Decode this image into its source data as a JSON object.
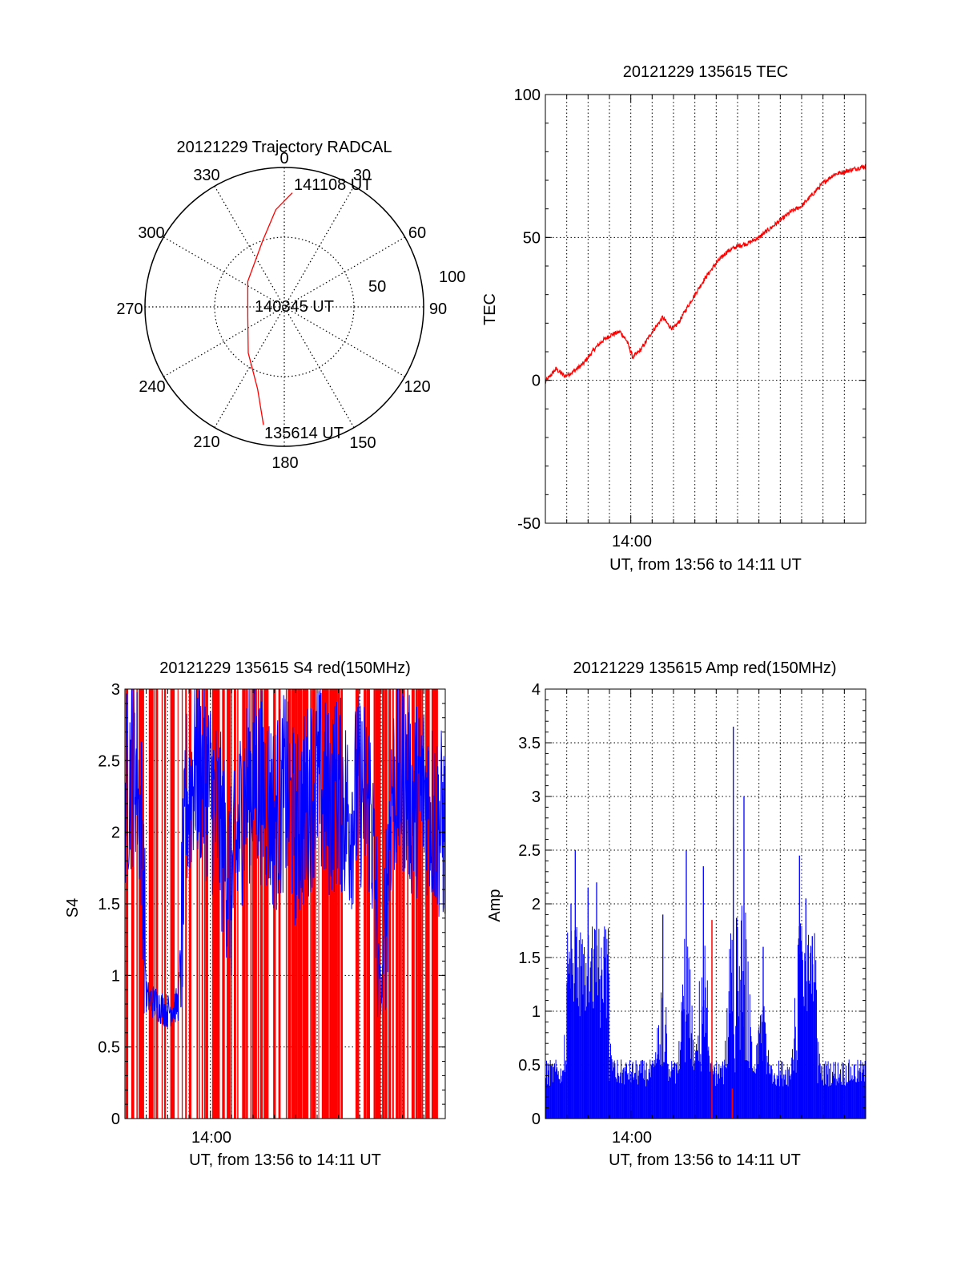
{
  "colors": {
    "red": "#ff0000",
    "blue": "#0000ff",
    "axis": "#000000"
  },
  "chart_data": [
    {
      "type": "polar",
      "title": "20121229 Trajectory RADCAL",
      "azimuth_labels": [
        "0",
        "30",
        "60",
        "90",
        "120",
        "150",
        "180",
        "210",
        "240",
        "270",
        "300",
        "330"
      ],
      "radial_labels": [
        "50",
        "100"
      ],
      "rlim": [
        0,
        100
      ],
      "trajectory": {
        "color": "red",
        "points": [
          {
            "az": 4,
            "r": 82
          },
          {
            "az": 355,
            "r": 70
          },
          {
            "az": 342,
            "r": 50
          },
          {
            "az": 305,
            "r": 32
          },
          {
            "az": 256,
            "r": 27
          },
          {
            "az": 218,
            "r": 42
          },
          {
            "az": 198,
            "r": 62
          },
          {
            "az": 190,
            "r": 86
          }
        ],
        "annotations": [
          "141108 UT",
          "140345 UT",
          "135614 UT"
        ]
      }
    },
    {
      "type": "line",
      "title": "20121229 135615 TEC",
      "ylabel": "TEC",
      "xlabel": "UT, from 13:56 to 14:11 UT",
      "xtick_labels": [
        "14:00"
      ],
      "xlim": [
        "13:56",
        "14:11"
      ],
      "ylim": [
        -50,
        100
      ],
      "ytick_labels": [
        "-50",
        "0",
        "50",
        "100"
      ],
      "grid": true,
      "series": [
        {
          "color": "red",
          "x_minutes": [
            0,
            0.5,
            0.9,
            1.3,
            1.8,
            2.3,
            2.7,
            3.1,
            3.5,
            3.8,
            4.1,
            4.5,
            5.0,
            5.5,
            5.8,
            6.0,
            6.3,
            6.6,
            7.0,
            7.5,
            8.0,
            8.5,
            9.0,
            9.5,
            10.0,
            10.5,
            11.0,
            11.5,
            12.0,
            12.5,
            13.0,
            13.5,
            14.0,
            14.5,
            15.0
          ],
          "values": [
            -0.5,
            4,
            1.5,
            3,
            6,
            11,
            14,
            16,
            17,
            14,
            8,
            11,
            17,
            22,
            19,
            18,
            21,
            25,
            30,
            36,
            41,
            45,
            47,
            48,
            50,
            53,
            56,
            59,
            61,
            65,
            69,
            72,
            73,
            74,
            75
          ]
        }
      ]
    },
    {
      "type": "line",
      "title": "20121229 135615 S4 red(150MHz)",
      "ylabel": "S4",
      "xlabel": "UT, from 13:56 to 14:11 UT",
      "xtick_labels": [
        "14:00"
      ],
      "xlim": [
        "13:56",
        "14:11"
      ],
      "ylim": [
        0,
        3
      ],
      "ytick_labels": [
        "0",
        "0.5",
        "1",
        "1.5",
        "2",
        "2.5",
        "3"
      ],
      "grid": true,
      "series": [
        {
          "name": "",
          "color": "red",
          "description_values": [
            1.5,
            3
          ]
        },
        {
          "color": "blue",
          "x_minutes": [
            0,
            0.5,
            0.8,
            1.0,
            1.5,
            2.0,
            2.5,
            2.9,
            3.3,
            4.0,
            4.5,
            5.0,
            5.5,
            6.0,
            6.5,
            7.0,
            7.5,
            8.0,
            8.5,
            9.0,
            9.5,
            10.0,
            10.5,
            11.0,
            11.5,
            12.0,
            12.5,
            13.0,
            13.5,
            14.0,
            14.5,
            15.0
          ],
          "values": [
            2.3,
            2.5,
            2.0,
            0.85,
            0.8,
            0.75,
            0.8,
            2.2,
            2.5,
            2.3,
            2.0,
            1.6,
            2.2,
            2.4,
            2.3,
            2.1,
            2.3,
            2.0,
            2.2,
            2.4,
            2.2,
            2.3,
            2.1,
            2.3,
            2.2,
            0.8,
            2.3,
            2.4,
            2.2,
            2.3,
            2.1,
            2.0
          ]
        }
      ]
    },
    {
      "type": "line",
      "title": "20121229 135615 Amp red(150MHz)",
      "ylabel": "Amp",
      "xlabel": "UT, from 13:56 to 14:11 UT",
      "xtick_labels": [
        "14:00"
      ],
      "xlim": [
        "13:56",
        "14:11"
      ],
      "ylim": [
        0,
        4
      ],
      "ytick_labels": [
        "0",
        "0.5",
        "1",
        "1.5",
        "2",
        "2.5",
        "3",
        "3.5",
        "4"
      ],
      "grid": true,
      "series": [
        {
          "color": "blue",
          "peaks": [
            {
              "x_minutes": 1.2,
              "value": 2.0
            },
            {
              "x_minutes": 1.4,
              "value": 2.5
            },
            {
              "x_minutes": 2.0,
              "value": 2.15
            },
            {
              "x_minutes": 2.4,
              "value": 2.2
            },
            {
              "x_minutes": 2.8,
              "value": 1.5
            },
            {
              "x_minutes": 5.5,
              "value": 1.9
            },
            {
              "x_minutes": 6.6,
              "value": 2.5
            },
            {
              "x_minutes": 7.4,
              "value": 2.35
            },
            {
              "x_minutes": 8.8,
              "value": 3.65
            },
            {
              "x_minutes": 9.3,
              "value": 3.0
            },
            {
              "x_minutes": 10.2,
              "value": 1.6
            },
            {
              "x_minutes": 11.9,
              "value": 2.45
            },
            {
              "x_minutes": 12.2,
              "value": 2.05
            },
            {
              "x_minutes": 12.5,
              "value": 1.7
            }
          ],
          "baseline": 0.3
        },
        {
          "color": "red",
          "peaks": [
            {
              "x_minutes": 7.8,
              "value": 1.85
            },
            {
              "x_minutes": 8.75,
              "value": 0.28
            }
          ]
        }
      ]
    }
  ]
}
